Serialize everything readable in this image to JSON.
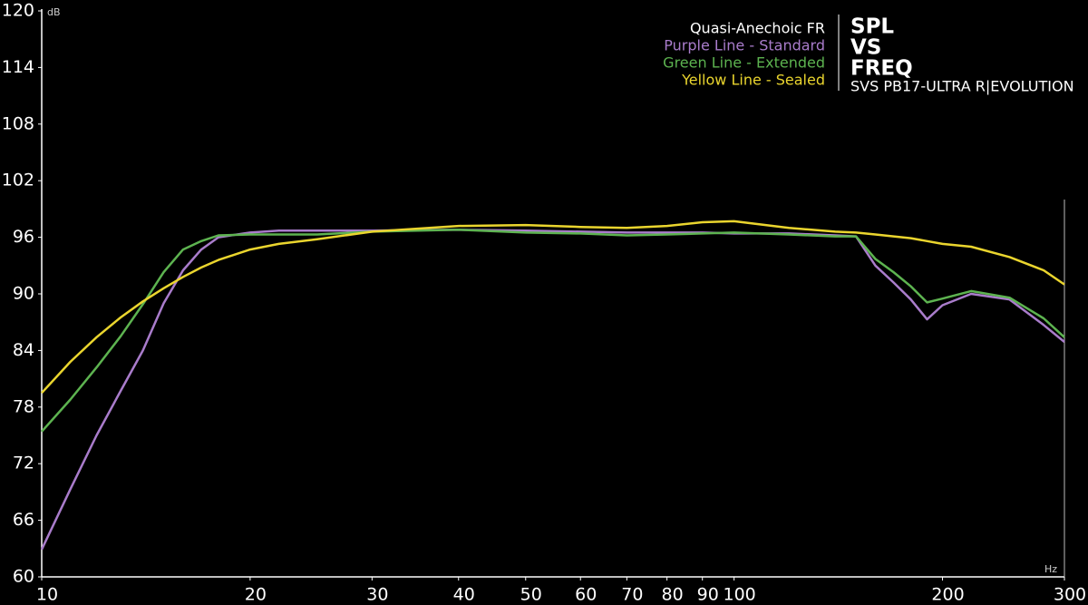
{
  "chart_data": {
    "type": "line",
    "title_lines": [
      "SPL",
      "VS",
      "FREQ"
    ],
    "subtitle": "SVS PB17-ULTRA R|EVOLUTION",
    "legend_title": "Quasi-Anechoic FR",
    "y_label": "dB",
    "x_label": "Hz",
    "xscale": "log",
    "x": [
      10,
      11,
      12,
      13,
      14,
      15,
      16,
      17,
      18,
      20,
      22,
      25,
      30,
      40,
      50,
      60,
      70,
      80,
      90,
      100,
      120,
      140,
      150,
      160,
      170,
      180,
      190,
      200,
      220,
      250,
      280,
      300
    ],
    "series": [
      {
        "name": "Purple Line - Standard",
        "color": "#a97ccb",
        "values": [
          62.9,
          69.3,
          75,
          79.7,
          84,
          89,
          92.5,
          94.7,
          96,
          96.5,
          96.7,
          96.7,
          96.7,
          96.8,
          96.7,
          96.6,
          96.5,
          96.5,
          96.5,
          96.4,
          96.4,
          96.2,
          96.1,
          93,
          91.2,
          89.4,
          87.3,
          88.8,
          90,
          89.4,
          86.7,
          84.9
        ]
      },
      {
        "name": "Green Line - Extended",
        "color": "#5db350",
        "values": [
          75.4,
          78.8,
          82.2,
          85.5,
          88.9,
          92.3,
          94.7,
          95.6,
          96.2,
          96.3,
          96.3,
          96.3,
          96.6,
          96.8,
          96.5,
          96.4,
          96.2,
          96.3,
          96.4,
          96.5,
          96.3,
          96.1,
          96.1,
          93.7,
          92.3,
          90.8,
          89.1,
          89.5,
          90.3,
          89.6,
          87.4,
          85.4
        ]
      },
      {
        "name": "Yellow Line - Sealed",
        "color": "#ead52e",
        "values": [
          79.5,
          82.8,
          85.4,
          87.5,
          89.2,
          90.6,
          91.8,
          92.8,
          93.6,
          94.7,
          95.3,
          95.8,
          96.6,
          97.2,
          97.3,
          97.1,
          97,
          97.2,
          97.6,
          97.7,
          97,
          96.6,
          96.5,
          96.3,
          96.1,
          95.9,
          95.6,
          95.3,
          95,
          93.9,
          92.5,
          91
        ]
      }
    ],
    "xlim": [
      10,
      300
    ],
    "xticks": [
      10,
      20,
      30,
      40,
      50,
      60,
      70,
      80,
      90,
      100,
      200,
      300
    ],
    "ylim": [
      60,
      120
    ],
    "yticks": [
      60,
      66,
      72,
      78,
      84,
      90,
      96,
      102,
      108,
      114,
      120
    ]
  }
}
